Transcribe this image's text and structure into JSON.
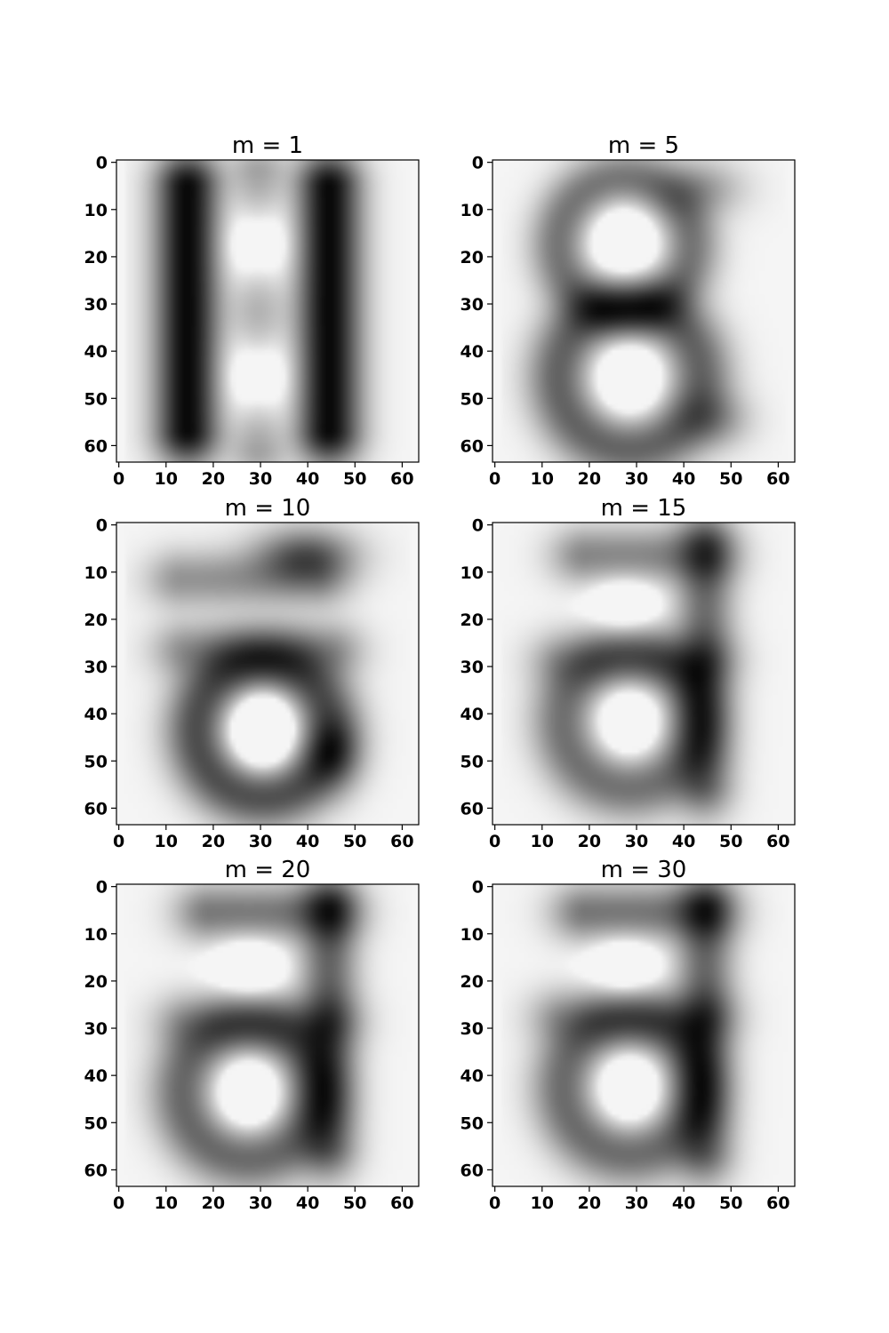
{
  "chart_data": [
    {
      "type": "heatmap",
      "title": "m = 1",
      "xlim": [
        0,
        63
      ],
      "ylim": [
        63,
        0
      ],
      "xticks": [
        "0",
        "10",
        "20",
        "30",
        "40",
        "50",
        "60"
      ],
      "yticks": [
        "0",
        "10",
        "20",
        "30",
        "40",
        "50",
        "60"
      ],
      "colormap": "gray",
      "strokes": [
        {
          "type": "vline",
          "x": 15,
          "y0": 6,
          "y1": 57,
          "sx": 4.5,
          "sy": 5,
          "w": 1.0
        },
        {
          "type": "vline",
          "x": 45,
          "y0": 6,
          "y1": 57,
          "sx": 4.5,
          "sy": 5,
          "w": 1.0
        },
        {
          "type": "vline",
          "x": 30,
          "y0": 3,
          "y1": 61,
          "sx": 4,
          "sy": 4,
          "w": 0.3
        },
        {
          "type": "blob",
          "x": 30,
          "y": 18,
          "sx": 5,
          "sy": 7,
          "w": -0.4
        },
        {
          "type": "blob",
          "x": 30,
          "y": 46,
          "sx": 5,
          "sy": 7,
          "w": -0.4
        }
      ]
    },
    {
      "type": "heatmap",
      "title": "m = 5",
      "xlim": [
        0,
        63
      ],
      "ylim": [
        63,
        0
      ],
      "xticks": [
        "0",
        "10",
        "20",
        "30",
        "40",
        "50",
        "60"
      ],
      "yticks": [
        "0",
        "10",
        "20",
        "30",
        "40",
        "50",
        "60"
      ],
      "colormap": "gray",
      "strokes": [
        {
          "type": "ring",
          "x": 28,
          "y": 18,
          "r": 14,
          "thick": 4,
          "w": 0.85
        },
        {
          "type": "ring",
          "x": 29,
          "y": 46,
          "r": 15,
          "thick": 4.5,
          "w": 1.0
        },
        {
          "type": "blob",
          "x": 44,
          "y": 6,
          "sx": 6,
          "sy": 4,
          "w": 0.5
        },
        {
          "type": "blob",
          "x": 47,
          "y": 55,
          "sx": 5,
          "sy": 4,
          "w": 0.5
        },
        {
          "type": "blob",
          "x": 28,
          "y": 18,
          "sx": 5,
          "sy": 6,
          "w": -0.5
        },
        {
          "type": "blob",
          "x": 29,
          "y": 46,
          "sx": 5,
          "sy": 6,
          "w": -0.5
        }
      ]
    },
    {
      "type": "heatmap",
      "title": "m = 10",
      "xlim": [
        0,
        63
      ],
      "ylim": [
        63,
        0
      ],
      "xticks": [
        "0",
        "10",
        "20",
        "30",
        "40",
        "50",
        "60"
      ],
      "yticks": [
        "0",
        "10",
        "20",
        "30",
        "40",
        "50",
        "60"
      ],
      "colormap": "gray",
      "strokes": [
        {
          "type": "ring",
          "x": 31,
          "y": 44,
          "r": 14,
          "thick": 4.5,
          "w": 0.9
        },
        {
          "type": "blob",
          "x": 40,
          "y": 7,
          "sx": 7,
          "sy": 4,
          "w": 0.75
        },
        {
          "type": "hline",
          "y": 12,
          "x0": 14,
          "x1": 42,
          "sx": 5,
          "sy": 4,
          "w": 0.45
        },
        {
          "type": "blob",
          "x": 46,
          "y": 49,
          "sx": 4,
          "sy": 5,
          "w": 0.5
        },
        {
          "type": "hline",
          "y": 27,
          "x0": 15,
          "x1": 45,
          "sx": 5,
          "sy": 4,
          "w": 0.45
        },
        {
          "type": "blob",
          "x": 31,
          "y": 44,
          "sx": 5,
          "sy": 6,
          "w": -0.6
        }
      ]
    },
    {
      "type": "heatmap",
      "title": "m = 15",
      "xlim": [
        0,
        63
      ],
      "ylim": [
        63,
        0
      ],
      "xticks": [
        "0",
        "10",
        "20",
        "30",
        "40",
        "50",
        "60"
      ],
      "yticks": [
        "0",
        "10",
        "20",
        "30",
        "40",
        "50",
        "60"
      ],
      "colormap": "gray",
      "strokes": [
        {
          "type": "vline",
          "x": 45,
          "y0": 5,
          "y1": 55,
          "sx": 4,
          "sy": 5,
          "w": 1.0
        },
        {
          "type": "ring",
          "x": 29,
          "y": 42,
          "r": 14,
          "thick": 4.5,
          "w": 1.0
        },
        {
          "type": "hline",
          "y": 7,
          "x0": 20,
          "x1": 45,
          "sx": 5,
          "sy": 4,
          "w": 0.8
        },
        {
          "type": "hline",
          "y": 29,
          "x0": 15,
          "x1": 45,
          "sx": 5,
          "sy": 4,
          "w": 0.5
        },
        {
          "type": "blob",
          "x": 28,
          "y": 18,
          "sx": 5,
          "sy": 5,
          "w": -0.5
        },
        {
          "type": "blob",
          "x": 29,
          "y": 42,
          "sx": 5,
          "sy": 6,
          "w": -0.5
        }
      ]
    },
    {
      "type": "heatmap",
      "title": "m = 20",
      "xlim": [
        0,
        63
      ],
      "ylim": [
        63,
        0
      ],
      "xticks": [
        "0",
        "10",
        "20",
        "30",
        "40",
        "50",
        "60"
      ],
      "yticks": [
        "0",
        "10",
        "20",
        "30",
        "40",
        "50",
        "60"
      ],
      "colormap": "gray",
      "strokes": [
        {
          "type": "vline",
          "x": 45,
          "y0": 5,
          "y1": 55,
          "sx": 4,
          "sy": 5,
          "w": 1.0
        },
        {
          "type": "ring",
          "x": 28,
          "y": 44,
          "r": 14,
          "thick": 4.5,
          "w": 1.0
        },
        {
          "type": "hline",
          "y": 6,
          "x0": 20,
          "x1": 45,
          "sx": 5,
          "sy": 4,
          "w": 0.85
        },
        {
          "type": "hline",
          "y": 29,
          "x0": 15,
          "x1": 45,
          "sx": 5,
          "sy": 4,
          "w": 0.5
        },
        {
          "type": "blob",
          "x": 28,
          "y": 18,
          "sx": 5,
          "sy": 5,
          "w": -0.5
        },
        {
          "type": "blob",
          "x": 28,
          "y": 44,
          "sx": 5,
          "sy": 6,
          "w": -0.5
        }
      ]
    },
    {
      "type": "heatmap",
      "title": "m = 30",
      "xlim": [
        0,
        63
      ],
      "ylim": [
        63,
        0
      ],
      "xticks": [
        "0",
        "10",
        "20",
        "30",
        "40",
        "50",
        "60"
      ],
      "yticks": [
        "0",
        "10",
        "20",
        "30",
        "40",
        "50",
        "60"
      ],
      "colormap": "gray",
      "strokes": [
        {
          "type": "vline",
          "x": 45,
          "y0": 5,
          "y1": 56,
          "sx": 4,
          "sy": 5,
          "w": 1.0
        },
        {
          "type": "ring",
          "x": 29,
          "y": 43,
          "r": 14,
          "thick": 4.5,
          "w": 1.0
        },
        {
          "type": "hline",
          "y": 6,
          "x0": 20,
          "x1": 45,
          "sx": 5,
          "sy": 4,
          "w": 0.9
        },
        {
          "type": "hline",
          "y": 28,
          "x0": 15,
          "x1": 45,
          "sx": 5,
          "sy": 4,
          "w": 0.55
        },
        {
          "type": "blob",
          "x": 28,
          "y": 18,
          "sx": 5,
          "sy": 5,
          "w": -0.5
        },
        {
          "type": "blob",
          "x": 29,
          "y": 43,
          "sx": 5,
          "sy": 6,
          "w": -0.5
        }
      ]
    }
  ]
}
